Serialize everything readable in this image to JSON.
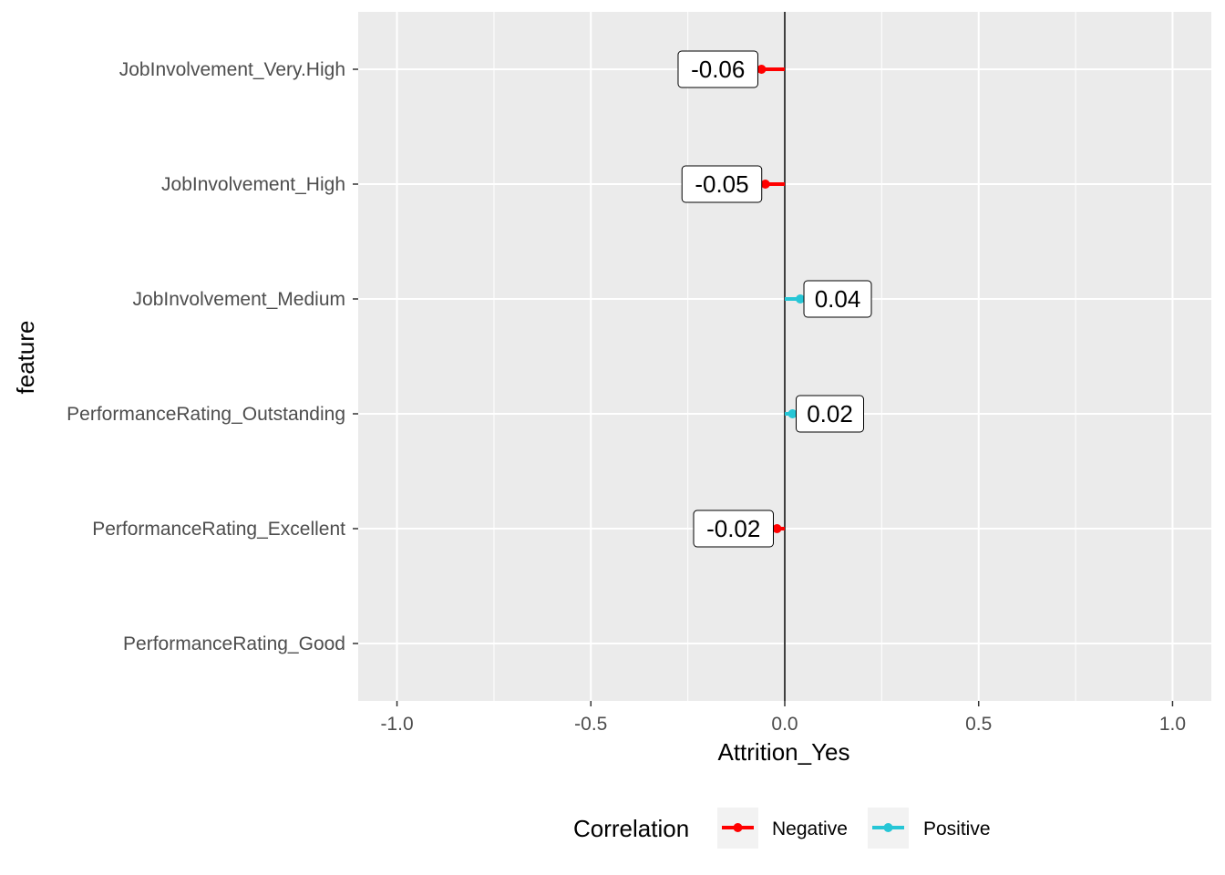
{
  "chart_data": {
    "type": "lollipop",
    "xlabel": "Attrition_Yes",
    "ylabel": "feature",
    "xlim": [
      -1.1,
      1.1
    ],
    "x_ticks": [
      -1.0,
      -0.5,
      0.0,
      0.5,
      1.0
    ],
    "x_tick_labels": [
      "-1.0",
      "-0.5",
      "0.0",
      "0.5",
      "1.0"
    ],
    "grid": true,
    "categories": [
      "JobInvolvement_Very.High",
      "JobInvolvement_High",
      "JobInvolvement_Medium",
      "PerformanceRating_Outstanding",
      "PerformanceRating_Excellent",
      "PerformanceRating_Good"
    ],
    "values": [
      -0.06,
      -0.05,
      0.04,
      0.02,
      -0.02,
      null
    ],
    "value_labels": [
      "-0.06",
      "-0.05",
      "0.04",
      "0.02",
      "-0.02",
      ""
    ],
    "correlation": [
      "Negative",
      "Negative",
      "Positive",
      "Positive",
      "Negative",
      null
    ],
    "legend": {
      "title": "Correlation",
      "position": "bottom",
      "items": [
        {
          "label": "Negative",
          "color": "#ff0000"
        },
        {
          "label": "Positive",
          "color": "#26c6d6"
        }
      ]
    },
    "colors": {
      "panel_bg": "#ebebeb",
      "grid_major": "#ffffff",
      "zero_line": "#000000"
    }
  }
}
